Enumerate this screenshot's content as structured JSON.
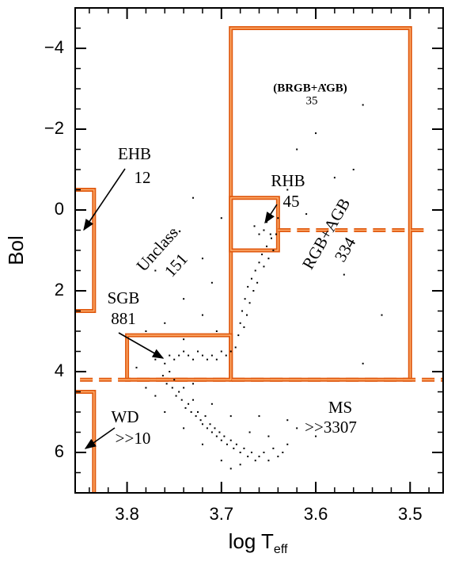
{
  "chart_data": {
    "type": "scatter",
    "ylabel": "Bol",
    "xlabel": {
      "text": "log T",
      "subscript": "eff"
    },
    "xlim": [
      3.855,
      3.465
    ],
    "ylim": [
      7,
      -5
    ],
    "xticks": [
      3.8,
      3.7,
      3.6,
      3.5
    ],
    "xminorticks": [
      3.84,
      3.82,
      3.78,
      3.76,
      3.74,
      3.72,
      3.68,
      3.66,
      3.64,
      3.62,
      3.58,
      3.56,
      3.54,
      3.52,
      3.48
    ],
    "yticks": [
      {
        "value": -4,
        "label": "−4"
      },
      {
        "value": -2,
        "label": "−2"
      },
      0,
      2,
      4,
      6
    ],
    "yminorticks": [
      -4.5,
      -3.5,
      -3,
      -2.5,
      -1.5,
      -1,
      -0.5,
      0.5,
      1,
      1.5,
      2.5,
      3,
      3.5,
      4.5,
      5,
      5.5,
      6.5
    ],
    "color": "#000000",
    "region_color": "#e05a10",
    "x": [
      3.762,
      3.758,
      3.755,
      3.752,
      3.75,
      3.748,
      3.745,
      3.742,
      3.74,
      3.738,
      3.735,
      3.732,
      3.73,
      3.727,
      3.725,
      3.722,
      3.72,
      3.717,
      3.715,
      3.712,
      3.71,
      3.707,
      3.705,
      3.702,
      3.7,
      3.697,
      3.694,
      3.69,
      3.687,
      3.684,
      3.68,
      3.676,
      3.672,
      3.668,
      3.664,
      3.66,
      3.655,
      3.65,
      3.645,
      3.64,
      3.635,
      3.63,
      3.77,
      3.76,
      3.74,
      3.72,
      3.7,
      3.69,
      3.68,
      3.73,
      3.71,
      3.69,
      3.67,
      3.65,
      3.62,
      3.6,
      3.63,
      3.66,
      3.78,
      3.79,
      3.77,
      3.76,
      3.755,
      3.75,
      3.745,
      3.74,
      3.735,
      3.73,
      3.725,
      3.72,
      3.715,
      3.71,
      3.705,
      3.7,
      3.695,
      3.69,
      3.685,
      3.682,
      3.68,
      3.678,
      3.676,
      3.675,
      3.673,
      3.672,
      3.67,
      3.668,
      3.666,
      3.664,
      3.662,
      3.66,
      3.657,
      3.655,
      3.652,
      3.65,
      3.647,
      3.645,
      3.642,
      3.64,
      3.665,
      3.66,
      3.655,
      3.652,
      3.648,
      3.72,
      3.75,
      3.74,
      3.71,
      3.76,
      3.73,
      3.7,
      3.77,
      3.78,
      3.72,
      3.705,
      3.74,
      3.62,
      3.6,
      3.58,
      3.55,
      3.59,
      3.56,
      3.61,
      3.53,
      3.57,
      3.55,
      3.63
    ],
    "values": [
      4.1,
      4.3,
      4.0,
      4.4,
      4.2,
      4.6,
      4.5,
      4.7,
      4.4,
      4.9,
      4.8,
      5.0,
      4.7,
      5.1,
      5.0,
      5.2,
      5.3,
      5.1,
      5.4,
      5.3,
      5.5,
      5.4,
      5.6,
      5.5,
      5.7,
      5.6,
      5.8,
      5.7,
      5.9,
      5.8,
      6.0,
      5.9,
      6.1,
      6.0,
      6.2,
      6.1,
      6.0,
      6.2,
      5.9,
      6.1,
      6.0,
      5.8,
      4.6,
      5.0,
      5.4,
      5.8,
      6.2,
      6.4,
      6.3,
      4.3,
      4.8,
      5.1,
      5.5,
      5.6,
      5.4,
      5.6,
      5.2,
      5.1,
      4.4,
      3.9,
      3.7,
      3.8,
      3.6,
      3.7,
      3.6,
      3.5,
      3.6,
      3.7,
      3.5,
      3.6,
      3.7,
      3.6,
      3.7,
      3.5,
      3.6,
      3.5,
      3.4,
      3.1,
      2.8,
      2.5,
      2.9,
      2.2,
      2.6,
      1.9,
      2.3,
      1.7,
      2.0,
      1.5,
      1.8,
      1.3,
      1.1,
      1.4,
      0.9,
      1.2,
      0.7,
      1.0,
      0.6,
      0.2,
      0.4,
      0.6,
      0.5,
      0.3,
      0.6,
      1.2,
      0.5,
      2.2,
      1.8,
      2.8,
      -0.3,
      0.2,
      1.5,
      3.0,
      2.6,
      3.0,
      3.2,
      -1.5,
      -1.9,
      -0.8,
      -2.6,
      -3.1,
      -1.0,
      0.1,
      2.6,
      1.6,
      3.8,
      -0.5
    ],
    "regions": [
      {
        "x": [
          3.69,
          3.5
        ],
        "y": [
          -4.5,
          4.2
        ]
      },
      {
        "x": [
          3.69,
          3.64
        ],
        "y": [
          -0.3,
          1.0
        ]
      },
      {
        "x": [
          3.8,
          3.69
        ],
        "y": [
          3.1,
          4.2
        ]
      },
      {
        "x": [
          3.87,
          3.835
        ],
        "y": [
          -0.5,
          2.5
        ]
      },
      {
        "x": [
          3.87,
          3.835
        ],
        "y": [
          4.5,
          7.5
        ]
      }
    ],
    "dashed_lines": [
      {
        "x": [
          3.64,
          3.48
        ],
        "y": 0.5
      },
      {
        "x": [
          3.87,
          3.45
        ],
        "y": 4.2
      }
    ],
    "annotations": {
      "ehb": "EHB",
      "ehb_n": "12",
      "rhb": "RHB",
      "rhb_n": "45",
      "brgb": "(BRGB+AGB)",
      "brgb_n": "35",
      "rgb": "RGB+AGB",
      "rgb_n": "334",
      "unclass": "Unclass.",
      "unclass_n": "151",
      "sgb": "SGB",
      "sgb_n": "881",
      "wd": "WD",
      "wd_n": ">>10",
      "ms": "MS",
      "ms_n": ">>3307"
    }
  }
}
